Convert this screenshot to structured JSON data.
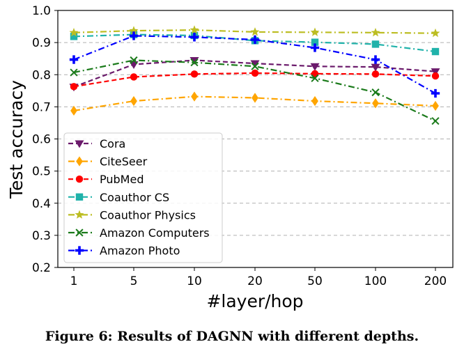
{
  "caption": "Figure 6: Results of DAGNN with different depths.",
  "chart_data": {
    "type": "line",
    "xlabel": "#layer/hop",
    "ylabel": "Test accuracy",
    "categories": [
      "1",
      "5",
      "10",
      "20",
      "50",
      "100",
      "200"
    ],
    "ylim": [
      0.2,
      1.0
    ],
    "yticks": [
      "0.2",
      "0.3",
      "0.4",
      "0.5",
      "0.6",
      "0.7",
      "0.8",
      "0.9",
      "1.0"
    ],
    "grid": "horizontal dashed",
    "legend_position": "bottom-left",
    "series": [
      {
        "name": "Cora",
        "color": "#6b1a6b",
        "marker": "triangle-down",
        "dash": "dashed",
        "values": [
          0.762,
          0.832,
          0.845,
          0.835,
          0.826,
          0.824,
          0.81
        ]
      },
      {
        "name": "CiteSeer",
        "color": "#ffa500",
        "marker": "diamond",
        "dash": "dashdot",
        "values": [
          0.688,
          0.718,
          0.732,
          0.728,
          0.718,
          0.711,
          0.703
        ]
      },
      {
        "name": "PubMed",
        "color": "#ff0000",
        "marker": "circle",
        "dash": "dashed",
        "values": [
          0.763,
          0.793,
          0.802,
          0.805,
          0.803,
          0.802,
          0.796
        ]
      },
      {
        "name": "Coauthor CS",
        "color": "#20b2aa",
        "marker": "square",
        "dash": "dashdot",
        "values": [
          0.919,
          0.925,
          0.922,
          0.906,
          0.901,
          0.895,
          0.872
        ]
      },
      {
        "name": "Coauthor Physics",
        "color": "#bcbd22",
        "marker": "star",
        "dash": "dashdot",
        "values": [
          0.931,
          0.937,
          0.939,
          0.933,
          0.932,
          0.931,
          0.929
        ]
      },
      {
        "name": "Amazon Computers",
        "color": "#1a7a1a",
        "marker": "x",
        "dash": "dashdot",
        "values": [
          0.807,
          0.845,
          0.838,
          0.826,
          0.789,
          0.745,
          0.656
        ]
      },
      {
        "name": "Amazon Photo",
        "color": "#0000ff",
        "marker": "plus",
        "dash": "dashdot",
        "values": [
          0.847,
          0.921,
          0.917,
          0.909,
          0.884,
          0.847,
          0.742
        ]
      }
    ]
  }
}
